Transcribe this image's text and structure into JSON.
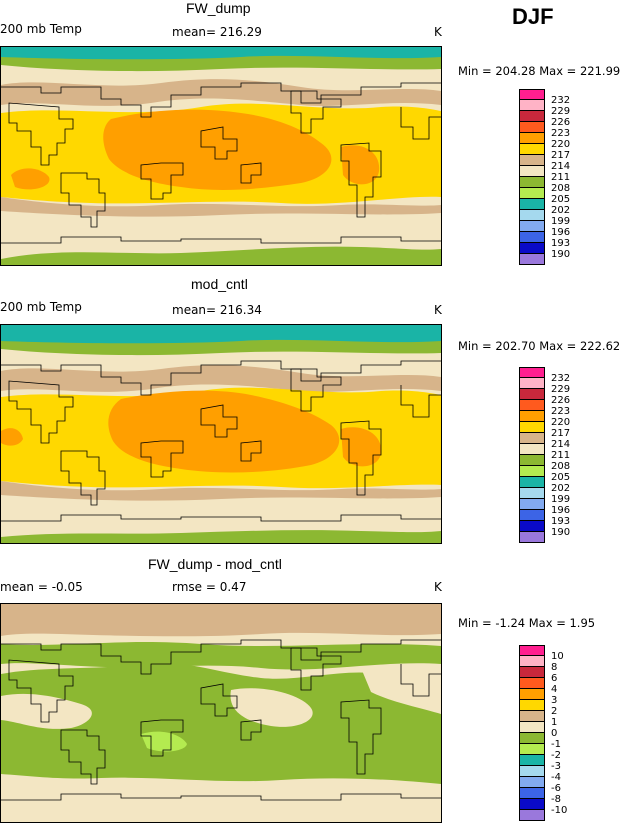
{
  "season": "DJF",
  "chart_data": [
    {
      "type": "heatmap",
      "title": "FW_dump",
      "left_label": "200 mb Temp",
      "center_label": "mean= 216.29",
      "right_label": "K",
      "stats": "Min = 204.28 Max = 221.99",
      "colorbar": {
        "levels": [
          "232",
          "229",
          "226",
          "223",
          "220",
          "217",
          "214",
          "211",
          "208",
          "205",
          "202",
          "199",
          "196",
          "193",
          "190"
        ],
        "colors": [
          "#ff1f8f",
          "#ffb3c6",
          "#c8283c",
          "#ff5a1e",
          "#ff9f00",
          "#ffd800",
          "#d7b48a",
          "#f3e6c3",
          "#8cb832",
          "#b4eb50",
          "#1ab4a6",
          "#a5d9ee",
          "#82aaf0",
          "#3c64e6",
          "#0a0ac8",
          "#9a78dc"
        ]
      },
      "field_colors": {
        "polar_north": "#1ab4a6",
        "north_band": "#b4eb50",
        "mid_cream": "#f3e6c3",
        "tan": "#d7b48a",
        "yellow": "#ffd800",
        "orange": "#ff9f00",
        "south_green": "#8cb832"
      }
    },
    {
      "type": "heatmap",
      "title": "mod_cntl",
      "left_label": "200 mb Temp",
      "center_label": "mean= 216.34",
      "right_label": "K",
      "stats": "Min = 202.70 Max = 222.62",
      "colorbar": {
        "levels": [
          "232",
          "229",
          "226",
          "223",
          "220",
          "217",
          "214",
          "211",
          "208",
          "205",
          "202",
          "199",
          "196",
          "193",
          "190"
        ],
        "colors": [
          "#ff1f8f",
          "#ffb3c6",
          "#c8283c",
          "#ff5a1e",
          "#ff9f00",
          "#ffd800",
          "#d7b48a",
          "#f3e6c3",
          "#8cb832",
          "#b4eb50",
          "#1ab4a6",
          "#a5d9ee",
          "#82aaf0",
          "#3c64e6",
          "#0a0ac8",
          "#9a78dc"
        ]
      }
    },
    {
      "type": "heatmap",
      "title": "FW_dump - mod_cntl",
      "left_label": "mean =  -0.05",
      "center_label": "rmse =   0.47",
      "right_label": "K",
      "stats": "Min =  -1.24 Max =   1.95",
      "colorbar": {
        "levels": [
          "10",
          "8",
          "6",
          "4",
          "3",
          "2",
          "1",
          "0",
          "-1",
          "-2",
          "-3",
          "-4",
          "-6",
          "-8",
          "-10"
        ],
        "colors": [
          "#ff1f8f",
          "#ffb3c6",
          "#c8283c",
          "#ff5a1e",
          "#ff9f00",
          "#ffd800",
          "#d7b48a",
          "#f3e6c3",
          "#8cb832",
          "#b4eb50",
          "#1ab4a6",
          "#a5d9ee",
          "#82aaf0",
          "#3c64e6",
          "#0a0ac8",
          "#9a78dc"
        ]
      }
    }
  ]
}
